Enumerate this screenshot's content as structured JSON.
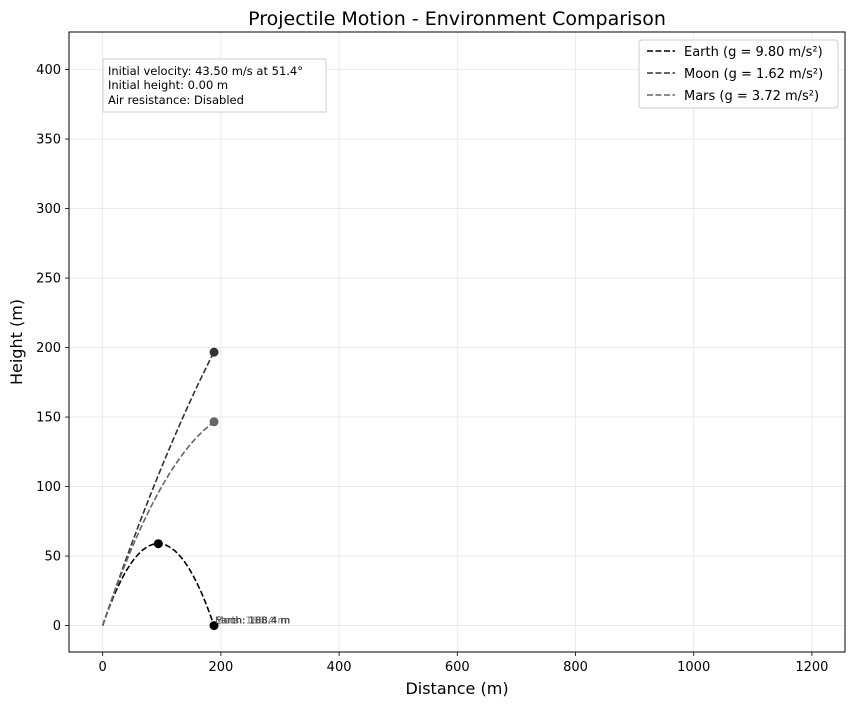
{
  "chart_data": {
    "type": "line",
    "title": "Projectile Motion - Environment Comparison",
    "xlabel": "Distance (m)",
    "ylabel": "Height (m)",
    "xlim": [
      -57,
      1256
    ],
    "ylim": [
      -19,
      427
    ],
    "xticks": [
      0,
      200,
      400,
      600,
      800,
      1000,
      1200
    ],
    "yticks": [
      0,
      50,
      100,
      150,
      200,
      250,
      300,
      350,
      400
    ],
    "grid": true,
    "legend_position": "top-right",
    "info_box": {
      "lines": [
        "Initial velocity: 43.50 m/s at 51.4°",
        "Initial height: 0.00 m",
        "Air resistance: Disabled"
      ]
    },
    "launch": {
      "v0": 43.5,
      "angle_deg": 51.4,
      "h0": 0.0
    },
    "series": [
      {
        "name": "Earth (g = 9.80 m/s²)",
        "g": 9.8,
        "color": "#000000",
        "x_range": [
          0,
          188.4
        ],
        "peak": {
          "x": 94.2,
          "y": 58.9
        },
        "end": {
          "x": 188.4,
          "y": 0
        },
        "annotation": "Earth: 188.4 m"
      },
      {
        "name": "Moon (g = 1.62 m/s²)",
        "g": 1.62,
        "color": "#333333",
        "x_range": [
          0,
          188.4
        ],
        "end": {
          "x": 188.4,
          "y": 196.7
        },
        "annotation": "Moon: 188.4 m"
      },
      {
        "name": "Mars (g = 3.72 m/s²)",
        "g": 3.72,
        "color": "#666666",
        "x_range": [
          0,
          188.4
        ],
        "end": {
          "x": 188.4,
          "y": 146.6
        },
        "annotation": "Mars: 188.4 m"
      }
    ]
  }
}
